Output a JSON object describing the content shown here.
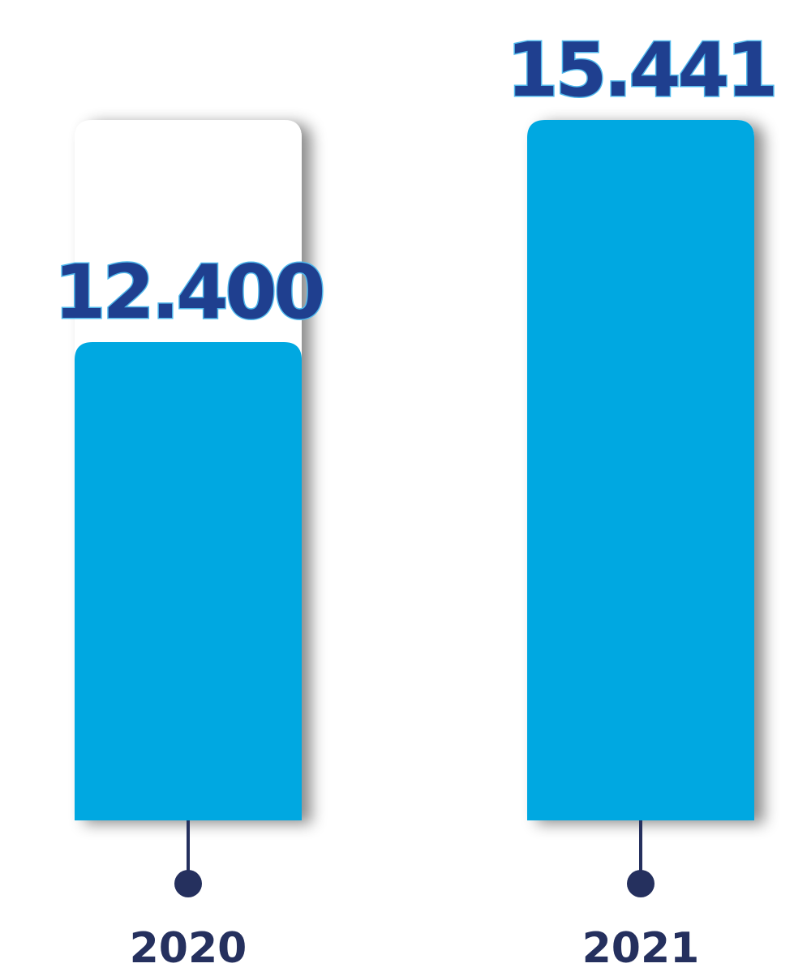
{
  "chart_data": {
    "type": "bar",
    "categories": [
      "2020",
      "2021"
    ],
    "values": [
      12400,
      15441
    ],
    "value_labels": [
      "12.400",
      "15.441"
    ],
    "color": "#00a8e1",
    "ylim": [
      5850,
      15441
    ]
  }
}
